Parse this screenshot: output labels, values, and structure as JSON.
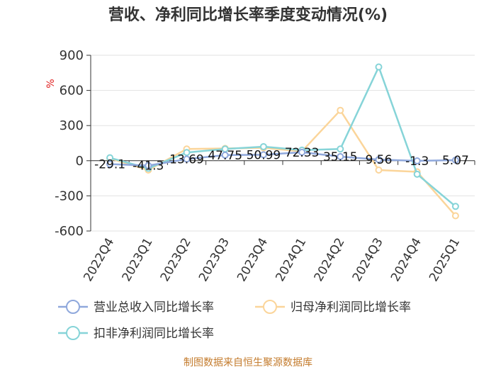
{
  "chart_data": {
    "type": "line",
    "title": "营收、净利同比增长率季度变动情况(%)",
    "ylabel": "%",
    "categories": [
      "2022Q4",
      "2023Q1",
      "2023Q2",
      "2023Q3",
      "2023Q4",
      "2024Q1",
      "2024Q2",
      "2024Q3",
      "2024Q4",
      "2025Q1"
    ],
    "ylim": [
      -600,
      900
    ],
    "yticks": [
      900,
      600,
      300,
      0,
      -300,
      -600
    ],
    "grid": true,
    "legend_position": "bottom",
    "series": [
      {
        "name": "营业总收入同比增长率",
        "color": "#8fa8dc",
        "values": [
          -29.1,
          -41.3,
          13.69,
          47.75,
          50.99,
          72.33,
          35.15,
          9.56,
          -1.3,
          5.07
        ],
        "data_labels": [
          "-29.1",
          "-41.3",
          "13.69",
          "47.75",
          "50.99",
          "72.33",
          "35.15",
          "9.56",
          "-1.3",
          "5.07"
        ]
      },
      {
        "name": "归母净利润同比增长率",
        "color": "#fbd59a",
        "values": [
          20,
          -80,
          100,
          105,
          110,
          80,
          430,
          -80,
          -95,
          -470
        ]
      },
      {
        "name": "扣非净利润同比增长率",
        "color": "#86d4d8",
        "values": [
          25,
          -65,
          70,
          100,
          120,
          90,
          100,
          800,
          -115,
          -390
        ]
      }
    ]
  },
  "footer": "制图数据来自恒生聚源数据库"
}
